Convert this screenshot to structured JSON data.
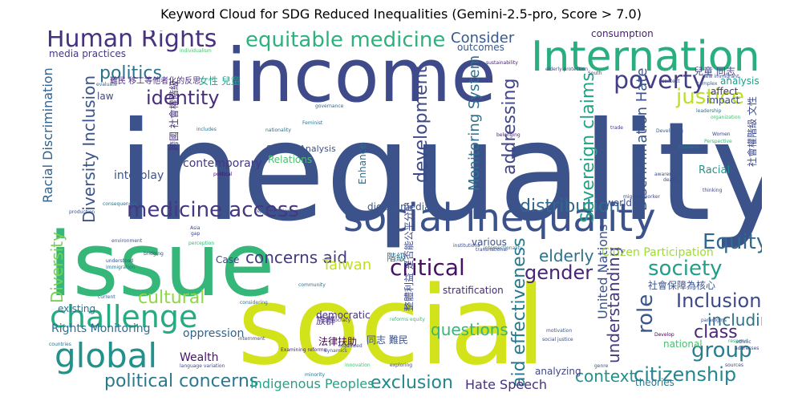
{
  "chart_data": {
    "type": "wordcloud",
    "title": "Keyword Cloud for SDG Reduced Inequalities (Gemini-2.5-pro, Score > 7.0)",
    "colormap": "viridis",
    "words": [
      {
        "text": "inequality",
        "color": "#3b528b"
      },
      {
        "text": "income",
        "color": "#3e4a89"
      },
      {
        "text": "issue",
        "color": "#35b779"
      },
      {
        "text": "social",
        "color": "#d2e21b"
      },
      {
        "text": "social inequality",
        "color": "#3b528b"
      },
      {
        "text": "International",
        "color": "#29af7f"
      },
      {
        "text": "global",
        "color": "#21918c"
      },
      {
        "text": "challenge",
        "color": "#25ab82"
      },
      {
        "text": "Human Rights",
        "color": "#46327e"
      },
      {
        "text": "equitable medicine",
        "color": "#2db27d"
      },
      {
        "text": "politics",
        "color": "#2c728e"
      },
      {
        "text": "identity",
        "color": "#472d7b"
      },
      {
        "text": "medicine access",
        "color": "#453781"
      },
      {
        "text": "poverty",
        "color": "#433e85"
      },
      {
        "text": "justice",
        "color": "#bddf26"
      },
      {
        "text": "Equity",
        "color": "#31688e"
      },
      {
        "text": "society",
        "color": "#1fa088"
      },
      {
        "text": "critical",
        "color": "#471063"
      },
      {
        "text": "Inclusion",
        "color": "#3e4989"
      },
      {
        "text": "group",
        "color": "#287d8e"
      },
      {
        "text": "citizenship",
        "color": "#24868e"
      },
      {
        "text": "gender",
        "color": "#482576"
      },
      {
        "text": "cultural",
        "color": "#8fd744"
      },
      {
        "text": "concerns aid",
        "color": "#443a83"
      },
      {
        "text": "distribution",
        "color": "#31688e"
      },
      {
        "text": "class",
        "color": "#482878"
      },
      {
        "text": "role",
        "color": "#39568c"
      },
      {
        "text": "including",
        "color": "#2c728e"
      },
      {
        "text": "political concerns",
        "color": "#2a788e"
      },
      {
        "text": "exclusion",
        "color": "#23888e"
      },
      {
        "text": "context",
        "color": "#21918c"
      },
      {
        "text": "development",
        "color": "#3e4989"
      },
      {
        "text": "addressing",
        "color": "#404688"
      },
      {
        "text": "Sovereign claims",
        "color": "#20a486"
      },
      {
        "text": "Diversity Inclusion",
        "color": "#3a548c"
      },
      {
        "text": "Racial Discrimination",
        "color": "#33638d"
      },
      {
        "text": "Monitoring System",
        "color": "#2d708e"
      },
      {
        "text": "Discrimination Hate",
        "color": "#3a548c"
      },
      {
        "text": "aid effectiveness",
        "color": "#2a788e"
      },
      {
        "text": "understanding",
        "color": "#443a83"
      },
      {
        "text": "questions",
        "color": "#35b779"
      },
      {
        "text": "Taiwan",
        "color": "#c2df23"
      },
      {
        "text": "elderly",
        "color": "#2c728e"
      },
      {
        "text": "Diversity",
        "color": "#7ad151"
      },
      {
        "text": "Consider",
        "color": "#38598c"
      },
      {
        "text": "Indigenous Peoples",
        "color": "#20a486"
      },
      {
        "text": "Hate Speech",
        "color": "#46307e"
      },
      {
        "text": "United Nations",
        "color": "#3b528b"
      },
      {
        "text": "Citizen Participation",
        "color": "#9fda3a"
      },
      {
        "text": "Rights Monitoring",
        "color": "#2e6e8e"
      },
      {
        "text": "oppression",
        "color": "#33638d"
      },
      {
        "text": "interplay",
        "color": "#3a548c"
      },
      {
        "text": "contemporary",
        "color": "#443983"
      },
      {
        "text": "digital media",
        "color": "#39568c"
      },
      {
        "text": "Relations",
        "color": "#48c16e"
      },
      {
        "text": "Enhance",
        "color": "#2d708e"
      },
      {
        "text": "Wealth",
        "color": "#471365"
      },
      {
        "text": "Case",
        "color": "#414487"
      },
      {
        "text": "world",
        "color": "#3b528b"
      },
      {
        "text": "law",
        "color": "#3e4a89"
      },
      {
        "text": "media practices",
        "color": "#443983"
      },
      {
        "text": "consumption",
        "color": "#482173"
      },
      {
        "text": "outcomes",
        "color": "#38598c"
      },
      {
        "text": "analysis",
        "color": "#1f9e89"
      },
      {
        "text": "affect",
        "color": "#46327e"
      },
      {
        "text": "impact",
        "color": "#3e4989"
      },
      {
        "text": "Racial",
        "color": "#1f968b"
      },
      {
        "text": "national",
        "color": "#48c16e"
      },
      {
        "text": "theories",
        "color": "#2a788e"
      },
      {
        "text": "analyzing",
        "color": "#404688"
      },
      {
        "text": "various",
        "color": "#3b528b"
      },
      {
        "text": "democratic",
        "color": "#46327e"
      },
      {
        "text": "stratification",
        "color": "#482878"
      },
      {
        "text": "existing",
        "color": "#2c728e"
      },
      {
        "text": "Spatial Analysis",
        "color": "#3b528b"
      },
      {
        "text": "法律扶助",
        "color": "#440154"
      },
      {
        "text": "族群",
        "color": "#472d7b"
      },
      {
        "text": "同志 難民",
        "color": "#3b528b"
      },
      {
        "text": "階級",
        "color": "#2c728e"
      },
      {
        "text": "社會保障為核心",
        "color": "#3b528b"
      },
      {
        "text": "兒童 同志",
        "color": "#414487"
      },
      {
        "text": "女性 兒童",
        "color": "#1fa088"
      },
      {
        "text": "難民 移工等他者化的反思",
        "color": "#472d7b"
      },
      {
        "text": "跨國 社會權階級",
        "color": "#46327e"
      },
      {
        "text": "社會權階級 文性",
        "color": "#3e4989"
      },
      {
        "text": "整體利益 是否能公平分配",
        "color": "#3e4989"
      },
      {
        "text": "new immigrant",
        "color": "#3e4989"
      },
      {
        "text": "elderly protection",
        "color": "#404688"
      },
      {
        "text": "sustainability",
        "color": "#482173"
      },
      {
        "text": "migrant worker",
        "color": "#3e4989"
      },
      {
        "text": "governance",
        "color": "#33638d"
      },
      {
        "text": "belonging",
        "color": "#482173"
      },
      {
        "text": "production",
        "color": "#3b528b"
      },
      {
        "text": "representation",
        "color": "#3b528b"
      },
      {
        "text": "Democracy",
        "color": "#46327e"
      },
      {
        "text": "intersectionality",
        "color": "#2c728e"
      },
      {
        "text": "minority",
        "color": "#2c728e"
      },
      {
        "text": "Examining reforms",
        "color": "#482173"
      },
      {
        "text": "organized",
        "color": "#3e4989"
      },
      {
        "text": "Develop",
        "color": "#440154"
      },
      {
        "text": "thinking",
        "color": "#404688"
      },
      {
        "text": "trade",
        "color": "#46327e"
      },
      {
        "text": "students",
        "color": "#2c728e"
      },
      {
        "text": "Developing",
        "color": "#38598c"
      },
      {
        "text": "Asia",
        "color": "#3e4989"
      },
      {
        "text": "gap",
        "color": "#414487"
      },
      {
        "text": "bridging",
        "color": "#3e4989"
      },
      {
        "text": "community",
        "color": "#2c728e"
      },
      {
        "text": "considering",
        "color": "#2d708e"
      },
      {
        "text": "environment",
        "color": "#3b528b"
      },
      {
        "text": "internment",
        "color": "#3e4989"
      },
      {
        "text": "political",
        "color": "#471063"
      },
      {
        "text": "includes",
        "color": "#2c728e"
      },
      {
        "text": "evaluate",
        "color": "#33638d"
      },
      {
        "text": "Perspective",
        "color": "#35b779"
      },
      {
        "text": "complex",
        "color": "#38598c"
      },
      {
        "text": "paradigms",
        "color": "#3b528b"
      },
      {
        "text": "ethnic",
        "color": "#404688"
      },
      {
        "text": "addresses",
        "color": "#3e4989"
      },
      {
        "text": "sources",
        "color": "#3e4989"
      },
      {
        "text": "South",
        "color": "#3e4989"
      },
      {
        "text": "context",
        "color": "#3e4989"
      },
      {
        "text": "respond",
        "color": "#29af7f"
      },
      {
        "text": "genre",
        "color": "#3b528b"
      },
      {
        "text": "death",
        "color": "#3e4989"
      },
      {
        "text": "awareness",
        "color": "#3b528b"
      },
      {
        "text": "Women",
        "color": "#404688"
      },
      {
        "text": "Feminist",
        "color": "#2c728e"
      },
      {
        "text": "nationality",
        "color": "#2d708e"
      },
      {
        "text": "organization",
        "color": "#46c06f"
      },
      {
        "text": "consequences",
        "color": "#2c728e"
      },
      {
        "text": "countries",
        "color": "#2c728e"
      },
      {
        "text": "current",
        "color": "#33638d"
      },
      {
        "text": "dynamics",
        "color": "#3e4989"
      },
      {
        "text": "exploring",
        "color": "#3e4989"
      },
      {
        "text": "reforms equity",
        "color": "#35b779"
      },
      {
        "text": "motivation",
        "color": "#38598c"
      },
      {
        "text": "language variation",
        "color": "#3e4989"
      },
      {
        "text": "understood",
        "color": "#3b528b"
      },
      {
        "text": "immigration",
        "color": "#2c728e"
      },
      {
        "text": "leadership",
        "color": "#2c728e"
      },
      {
        "text": "individualism",
        "color": "#46c06f"
      },
      {
        "text": "institutions",
        "color": "#3e4989"
      },
      {
        "text": "innovation",
        "color": "#46c06f"
      },
      {
        "text": "transnational",
        "color": "#3e4989"
      },
      {
        "text": "social justice",
        "color": "#3e4989"
      },
      {
        "text": "perception",
        "color": "#35b779"
      }
    ]
  }
}
